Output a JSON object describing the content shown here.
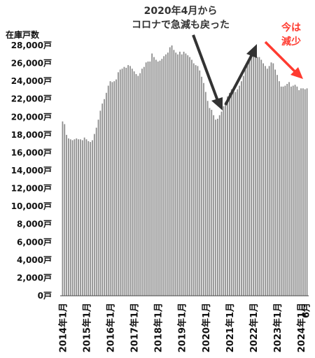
{
  "chart_data": {
    "type": "bar",
    "ylabel": "在庫戸数",
    "ylim": [
      0,
      28000
    ],
    "yticks": [
      0,
      2000,
      4000,
      6000,
      8000,
      10000,
      12000,
      14000,
      16000,
      18000,
      20000,
      22000,
      24000,
      26000,
      28000
    ],
    "ytick_labels": [
      "0戸",
      "2,000戸",
      "4,000戸",
      "6,000戸",
      "8,000戸",
      "10,000戸",
      "12,000戸",
      "14,000戸",
      "16,000戸",
      "18,000戸",
      "20,000戸",
      "22,000戸",
      "24,000戸",
      "26,000戸",
      "28,000戸"
    ],
    "xtick_labels": [
      "2014年1月",
      "2015年1月",
      "2016年1月",
      "2017年1月",
      "2018年1月",
      "2019年1月",
      "2020年1月",
      "2021年1月",
      "2022年1月",
      "2023年1月",
      "2024年1月",
      "2025年1月",
      "6月"
    ],
    "series": [
      {
        "values": [
          19500,
          19200,
          18000,
          17600,
          17500,
          17400,
          17500,
          17600,
          17500,
          17500,
          17400,
          17700,
          17500,
          17300,
          17200,
          17400,
          18100,
          18800,
          19700,
          20700,
          21500,
          22000,
          22700,
          23500,
          24000,
          23900,
          24000,
          24200,
          25000,
          25300,
          25400,
          25600,
          25500,
          25800,
          25700,
          25400,
          25100,
          24800,
          24600,
          24900,
          25400,
          25600,
          26100,
          26200,
          26200,
          27100,
          26700,
          26400,
          26200,
          26300,
          26500,
          26800,
          27000,
          27200,
          27800,
          28000,
          27500,
          27200,
          27000,
          27300,
          27000,
          27300,
          27100,
          26900,
          26700,
          26400,
          26000,
          25800,
          25700,
          25200,
          24500,
          23800,
          22800,
          21800,
          21000,
          20800,
          20200,
          19700,
          19800,
          20200,
          20600,
          21200,
          21700,
          22300,
          22700,
          23100,
          22900,
          22800,
          23100,
          23500,
          24000,
          24600,
          25300,
          26200,
          26600,
          26900,
          27000,
          26800,
          26700,
          26700,
          26400,
          26000,
          25700,
          25400,
          25700,
          26100,
          26000,
          25300,
          24700,
          24000,
          23400,
          23400,
          23500,
          23700,
          23900,
          23400,
          23500,
          23600,
          23400,
          23000,
          23200,
          23200,
          23100,
          23200
        ]
      }
    ],
    "bar_color": "#8c8c8c",
    "annotations": [
      {
        "text_line1": "2020年4月から",
        "text_line2": "コロナで急減も戻った",
        "color": "#333333"
      },
      {
        "text_line1": "今は",
        "text_line2": "減少",
        "color": "#ff3b30"
      }
    ]
  }
}
